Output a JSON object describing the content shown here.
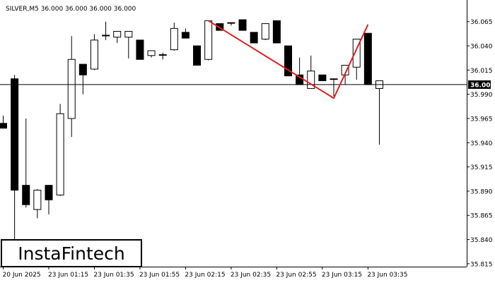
{
  "header": {
    "symbol_line": "SILVER,M5  36.000 36.000 36.000 36.000"
  },
  "brand": {
    "logo_text": "InstaFintech"
  },
  "price_tag": {
    "value": "36.000"
  },
  "colors": {
    "background": "#ffffff",
    "candle_bear": "#000000",
    "candle_bull_fill": "#ffffff",
    "pattern_line": "#e31e24",
    "price_tag_bg": "#000000",
    "price_tag_text": "#ffffff"
  },
  "chart_data": {
    "type": "candlestick",
    "symbol": "SILVER",
    "timeframe": "M5",
    "ylim": [
      35.812,
      36.083
    ],
    "y_ticks": [
      "36.065",
      "36.040",
      "36.015",
      "35.990",
      "35.965",
      "35.940",
      "35.915",
      "35.890",
      "35.865",
      "35.840",
      "35.815"
    ],
    "x_ticks": [
      {
        "index": 0,
        "label": "20 Jun 2025"
      },
      {
        "index": 4,
        "label": "23 Jun 01:15"
      },
      {
        "index": 8,
        "label": "23 Jun 01:35"
      },
      {
        "index": 12,
        "label": "23 Jun 01:55"
      },
      {
        "index": 16,
        "label": "23 Jun 02:15"
      },
      {
        "index": 20,
        "label": "23 Jun 02:35"
      },
      {
        "index": 24,
        "label": "23 Jun 02:55"
      },
      {
        "index": 28,
        "label": "23 Jun 03:15"
      },
      {
        "index": 32,
        "label": "23 Jun 03:35"
      }
    ],
    "current_price": 36.0,
    "candles": [
      {
        "o": 35.96,
        "h": 35.968,
        "l": 35.955,
        "c": 35.955
      },
      {
        "o": 36.006,
        "h": 36.01,
        "l": 35.837,
        "c": 35.891
      },
      {
        "o": 35.896,
        "h": 35.965,
        "l": 35.873,
        "c": 35.876
      },
      {
        "o": 35.871,
        "h": 35.892,
        "l": 35.862,
        "c": 35.891
      },
      {
        "o": 35.896,
        "h": 35.896,
        "l": 35.866,
        "c": 35.881
      },
      {
        "o": 35.886,
        "h": 35.98,
        "l": 35.885,
        "c": 35.97
      },
      {
        "o": 35.965,
        "h": 36.05,
        "l": 35.946,
        "c": 36.026
      },
      {
        "o": 36.021,
        "h": 36.021,
        "l": 35.99,
        "c": 36.01
      },
      {
        "o": 36.016,
        "h": 36.052,
        "l": 36.015,
        "c": 36.046
      },
      {
        "o": 36.051,
        "h": 36.065,
        "l": 36.046,
        "c": 36.051
      },
      {
        "o": 36.049,
        "h": 36.055,
        "l": 36.043,
        "c": 36.055
      },
      {
        "o": 36.049,
        "h": 36.055,
        "l": 36.027,
        "c": 36.055
      },
      {
        "o": 36.046,
        "h": 36.046,
        "l": 36.026,
        "c": 36.026
      },
      {
        "o": 36.03,
        "h": 36.035,
        "l": 36.028,
        "c": 36.035
      },
      {
        "o": 36.031,
        "h": 36.033,
        "l": 36.026,
        "c": 36.031
      },
      {
        "o": 36.036,
        "h": 36.064,
        "l": 36.035,
        "c": 36.058
      },
      {
        "o": 36.054,
        "h": 36.058,
        "l": 36.048,
        "c": 36.048
      },
      {
        "o": 36.04,
        "h": 36.04,
        "l": 36.02,
        "c": 36.02
      },
      {
        "o": 36.026,
        "h": 36.066,
        "l": 36.025,
        "c": 36.066
      },
      {
        "o": 36.063,
        "h": 36.063,
        "l": 36.056,
        "c": 36.056
      },
      {
        "o": 36.064,
        "h": 36.064,
        "l": 36.061,
        "c": 36.064
      },
      {
        "o": 36.067,
        "h": 36.067,
        "l": 36.056,
        "c": 36.056
      },
      {
        "o": 36.054,
        "h": 36.054,
        "l": 36.043,
        "c": 36.043
      },
      {
        "o": 36.047,
        "h": 36.063,
        "l": 36.046,
        "c": 36.063
      },
      {
        "o": 36.066,
        "h": 36.066,
        "l": 36.043,
        "c": 36.043
      },
      {
        "o": 36.04,
        "h": 36.04,
        "l": 36.009,
        "c": 36.009
      },
      {
        "o": 36.01,
        "h": 36.028,
        "l": 36.0,
        "c": 36.0
      },
      {
        "o": 35.996,
        "h": 36.03,
        "l": 35.996,
        "c": 36.014
      },
      {
        "o": 36.01,
        "h": 36.01,
        "l": 36.004,
        "c": 36.004
      },
      {
        "o": 36.006,
        "h": 36.006,
        "l": 35.988,
        "c": 36.006
      },
      {
        "o": 36.01,
        "h": 36.02,
        "l": 36.0,
        "c": 36.02
      },
      {
        "o": 36.018,
        "h": 36.047,
        "l": 36.005,
        "c": 36.047
      },
      {
        "o": 36.053,
        "h": 36.053,
        "l": 36.0,
        "c": 36.0
      },
      {
        "o": 35.996,
        "h": 36.004,
        "l": 35.938,
        "c": 36.004
      }
    ],
    "pattern_line": {
      "label": "",
      "points": [
        {
          "index": 18,
          "price": 36.066
        },
        {
          "index": 29,
          "price": 35.986
        },
        {
          "index": 32,
          "price": 36.062
        }
      ]
    }
  }
}
